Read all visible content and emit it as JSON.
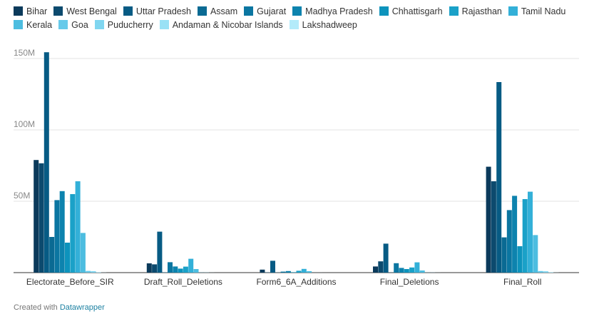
{
  "chart_data": {
    "type": "bar",
    "categories": [
      "Electorate_Before_SIR",
      "Draft_Roll_Deletions",
      "Form6_6A_Additions",
      "Final_Deletions",
      "Final_Roll"
    ],
    "ylim": [
      0,
      160000000
    ],
    "y_ticks": [
      50000000,
      100000000,
      150000000
    ],
    "y_tick_labels": [
      "50M",
      "100M",
      "150M"
    ],
    "grid": true,
    "legend_position": "top",
    "series": [
      {
        "name": "Bihar",
        "color": "#0b3a5b",
        "values": [
          78900000,
          6500000,
          2100000,
          4300000,
          74200000
        ]
      },
      {
        "name": "West Bengal",
        "color": "#0c4a6e",
        "values": [
          76600000,
          5800000,
          200000,
          7900000,
          64000000
        ]
      },
      {
        "name": "Uttar Pradesh",
        "color": "#075b84",
        "values": [
          154400000,
          28700000,
          8300000,
          20300000,
          133500000
        ]
      },
      {
        "name": "Assam",
        "color": "#0a6a93",
        "values": [
          25000000,
          200000,
          100000,
          100000,
          24700000
        ]
      },
      {
        "name": "Gujarat",
        "color": "#0b76a1",
        "values": [
          50800000,
          7300000,
          700000,
          6600000,
          43800000
        ]
      },
      {
        "name": "Madhya Pradesh",
        "color": "#0d83ae",
        "values": [
          57100000,
          4300000,
          1100000,
          3300000,
          53800000
        ]
      },
      {
        "name": "Chhattisgarh",
        "color": "#0d93bc",
        "values": [
          21000000,
          2800000,
          300000,
          2500000,
          18500000
        ]
      },
      {
        "name": "Rajasthan",
        "color": "#1aa1c8",
        "values": [
          55000000,
          4200000,
          1300000,
          3600000,
          51500000
        ]
      },
      {
        "name": "Tamil Nadu",
        "color": "#33b0d8",
        "values": [
          64000000,
          9700000,
          2600000,
          7200000,
          56700000
        ]
      },
      {
        "name": "Kerala",
        "color": "#4dbde0",
        "values": [
          27800000,
          2500000,
          1000000,
          1500000,
          26300000
        ]
      },
      {
        "name": "Goa",
        "color": "#66caea",
        "values": [
          1200000,
          100000,
          20000,
          80000,
          1100000
        ]
      },
      {
        "name": "Puducherry",
        "color": "#80d6f0",
        "values": [
          1000000,
          100000,
          20000,
          80000,
          950000
        ]
      },
      {
        "name": "Andaman & Nicobar Islands",
        "color": "#99e1f5",
        "values": [
          310000,
          30000,
          5000,
          25000,
          290000
        ]
      },
      {
        "name": "Lakshadweep",
        "color": "#b3ebfa",
        "values": [
          58000,
          2000,
          500,
          1500,
          57000
        ]
      }
    ]
  },
  "footer": {
    "prefix": "Created with ",
    "brand": "Datawrapper"
  }
}
